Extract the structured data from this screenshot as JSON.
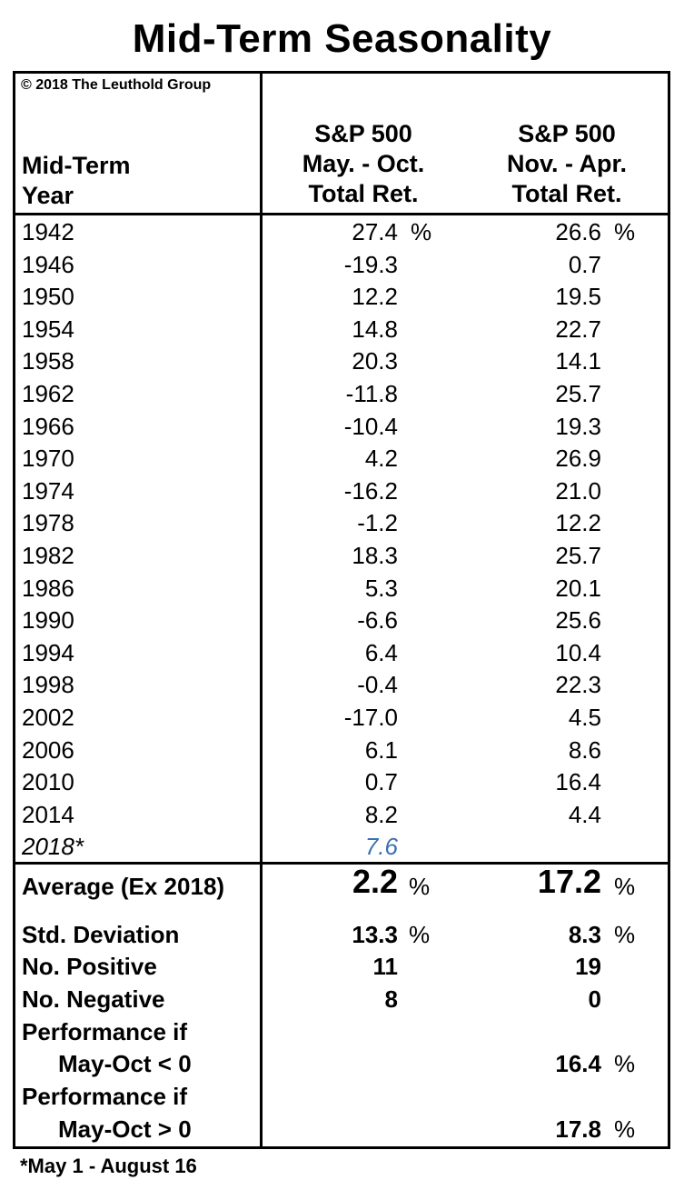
{
  "title": "Mid-Term Seasonality",
  "copyright": "© 2018 The Leuthold Group",
  "headers": {
    "col1": [
      "Mid-Term",
      "Year"
    ],
    "col2": [
      "S&P 500",
      "May. - Oct.",
      "Total Ret."
    ],
    "col3": [
      "S&P 500",
      "Nov. - Apr.",
      "Total Ret."
    ]
  },
  "rows": [
    {
      "year": "1942",
      "may_oct": "27.4",
      "nov_apr": "26.6"
    },
    {
      "year": "1946",
      "may_oct": "-19.3",
      "nov_apr": "0.7"
    },
    {
      "year": "1950",
      "may_oct": "12.2",
      "nov_apr": "19.5"
    },
    {
      "year": "1954",
      "may_oct": "14.8",
      "nov_apr": "22.7"
    },
    {
      "year": "1958",
      "may_oct": "20.3",
      "nov_apr": "14.1"
    },
    {
      "year": "1962",
      "may_oct": "-11.8",
      "nov_apr": "25.7"
    },
    {
      "year": "1966",
      "may_oct": "-10.4",
      "nov_apr": "19.3"
    },
    {
      "year": "1970",
      "may_oct": "4.2",
      "nov_apr": "26.9"
    },
    {
      "year": "1974",
      "may_oct": "-16.2",
      "nov_apr": "21.0"
    },
    {
      "year": "1978",
      "may_oct": "-1.2",
      "nov_apr": "12.2"
    },
    {
      "year": "1982",
      "may_oct": "18.3",
      "nov_apr": "25.7"
    },
    {
      "year": "1986",
      "may_oct": "5.3",
      "nov_apr": "20.1"
    },
    {
      "year": "1990",
      "may_oct": "-6.6",
      "nov_apr": "25.6"
    },
    {
      "year": "1994",
      "may_oct": "6.4",
      "nov_apr": "10.4"
    },
    {
      "year": "1998",
      "may_oct": "-0.4",
      "nov_apr": "22.3"
    },
    {
      "year": "2002",
      "may_oct": "-17.0",
      "nov_apr": "4.5"
    },
    {
      "year": "2006",
      "may_oct": "6.1",
      "nov_apr": "8.6"
    },
    {
      "year": "2010",
      "may_oct": "0.7",
      "nov_apr": "16.4"
    },
    {
      "year": "2014",
      "may_oct": "8.2",
      "nov_apr": "4.4"
    },
    {
      "year": "2018*",
      "may_oct": "7.6",
      "nov_apr": ""
    }
  ],
  "pct_sign": "%",
  "summary": {
    "average": {
      "label": "Average (Ex 2018)",
      "may_oct": "2.2",
      "nov_apr": "17.2"
    },
    "std": {
      "label": "Std. Deviation",
      "may_oct": "13.3",
      "nov_apr": "8.3"
    },
    "positive": {
      "label": "No. Positive",
      "may_oct": "11",
      "nov_apr": "19"
    },
    "negative": {
      "label": "No. Negative",
      "may_oct": "8",
      "nov_apr": "0"
    },
    "perf_neg": {
      "label1": "Performance if",
      "label2": "May-Oct < 0",
      "nov_apr": "16.4"
    },
    "perf_pos": {
      "label1": "Performance if",
      "label2": "May-Oct > 0",
      "nov_apr": "17.8"
    }
  },
  "footnote": "*May 1 - August 16",
  "colors": {
    "highlight_2018": "#3b6fb0"
  }
}
